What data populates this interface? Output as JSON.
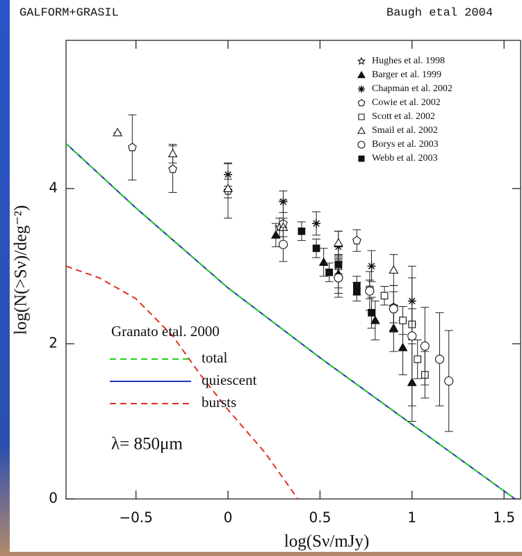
{
  "header": {
    "left": "GALFORM+GRASIL",
    "right": "Baugh etal 2004"
  },
  "chart_data": {
    "type": "scatter",
    "xlabel": "log(Sν/mJy)",
    "ylabel": "log(N(>Sν)/deg⁻²)",
    "xlim": [
      -0.88,
      1.59
    ],
    "ylim": [
      0,
      5.91
    ],
    "xticks": [
      {
        "value": -0.5,
        "label": "−0.5"
      },
      0,
      0.5,
      1,
      1.5
    ],
    "yticks": [
      0,
      2,
      4
    ],
    "legend_position": "upper right",
    "series": [
      {
        "name": "Hughes et al. 1998",
        "marker": "star",
        "filled": false,
        "x": [
          0.28
        ],
        "values": [
          3.5
        ],
        "yerr": [
          0.12
        ]
      },
      {
        "name": "Barger et al. 1999",
        "marker": "triangle",
        "filled": true,
        "x": [
          0.26,
          0.52,
          0.6,
          0.8,
          0.9,
          0.95,
          1.0
        ],
        "values": [
          3.4,
          3.05,
          2.9,
          2.3,
          2.2,
          1.95,
          1.5
        ],
        "yerr": [
          0.15,
          0.18,
          0.18,
          0.25,
          0.3,
          0.35,
          0.5
        ]
      },
      {
        "name": "Chapman et al. 2002",
        "marker": "asterisk",
        "filled": false,
        "x": [
          0,
          0.3,
          0.48,
          0.6,
          0.78,
          1.0
        ],
        "values": [
          4.18,
          3.83,
          3.55,
          3.25,
          3.0,
          2.55
        ],
        "yerr": [
          0.15,
          0.14,
          0.15,
          0.2,
          0.2,
          0.3
        ]
      },
      {
        "name": "Cowie et al. 2002",
        "marker": "pentagon",
        "filled": false,
        "x": [
          -0.52,
          -0.3,
          0,
          0.3,
          0.6,
          0.7,
          0.9
        ],
        "values": [
          4.53,
          4.25,
          3.97,
          3.55,
          2.85,
          3.33,
          2.47
        ],
        "yerr": [
          0.42,
          0.3,
          0.35,
          0.3,
          0.25,
          0.14,
          0.2
        ]
      },
      {
        "name": "Scott et al. 2002",
        "marker": "square",
        "filled": false,
        "x": [
          0.6,
          0.77,
          0.85,
          0.95,
          1.0,
          1.03,
          1.07
        ],
        "values": [
          3.0,
          2.7,
          2.62,
          2.3,
          2.25,
          1.8,
          1.6
        ],
        "yerr": [
          0.12,
          0.12,
          0.12,
          0.18,
          0.2,
          0.25,
          0.3
        ]
      },
      {
        "name": "Smail et al. 2002",
        "marker": "triangle",
        "filled": false,
        "x": [
          -0.6,
          -0.3,
          0,
          0.3,
          0.6,
          0.9
        ],
        "values": [
          4.72,
          4.45,
          4.0,
          3.5,
          3.3,
          2.95
        ],
        "yerr": [
          0.0,
          0.12,
          0.12,
          0.12,
          0.15,
          0.2
        ]
      },
      {
        "name": "Borys et al. 2003",
        "marker": "circle",
        "filled": false,
        "x": [
          0.3,
          0.6,
          0.77,
          0.9,
          1.0,
          1.07,
          1.15,
          1.2
        ],
        "values": [
          3.28,
          2.85,
          2.68,
          2.45,
          2.1,
          1.97,
          1.8,
          1.52
        ],
        "yerr": [
          0.22,
          0.2,
          0.25,
          0.3,
          0.9,
          0.5,
          0.6,
          0.65
        ]
      },
      {
        "name": "Webb et al. 2003",
        "marker": "square",
        "filled": true,
        "x": [
          0.4,
          0.48,
          0.55,
          0.6,
          0.7,
          0.7,
          0.78
        ],
        "values": [
          3.45,
          3.23,
          2.92,
          3.02,
          2.75,
          2.67,
          2.4
        ],
        "yerr": [
          0.12,
          0.12,
          0.12,
          0.12,
          0.12,
          0.12,
          0.2
        ]
      }
    ],
    "lines_title": "Granato etal. 2000",
    "lines": [
      {
        "name": "total",
        "color": "#22cc22",
        "dashed": true,
        "x": [
          -0.88,
          -0.5,
          0,
          0.5,
          1,
          1.56
        ],
        "values": [
          4.58,
          3.75,
          2.72,
          1.82,
          0.96,
          0
        ]
      },
      {
        "name": "quiescent",
        "color": "#2233bb",
        "dashed": false,
        "x": [
          -0.88,
          -0.5,
          0,
          0.5,
          1,
          1.56
        ],
        "values": [
          4.58,
          3.75,
          2.72,
          1.82,
          0.96,
          0
        ]
      },
      {
        "name": "bursts",
        "color": "#e03020",
        "dashed": true,
        "x": [
          -0.88,
          -0.7,
          -0.5,
          -0.3,
          -0.15,
          0,
          0.2,
          0.38
        ],
        "values": [
          3.0,
          2.85,
          2.58,
          2.1,
          1.6,
          1.15,
          0.6,
          0
        ]
      }
    ],
    "annotation": "λ= 850μm"
  }
}
